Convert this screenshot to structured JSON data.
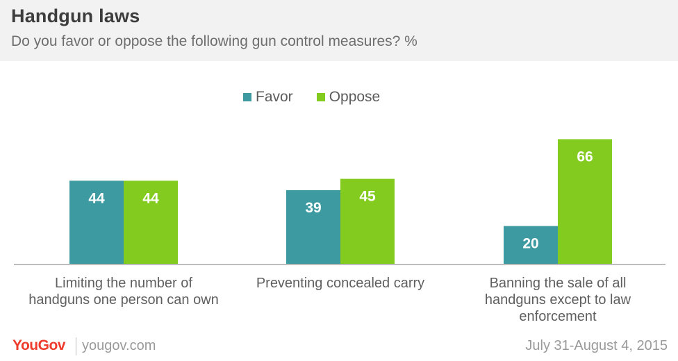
{
  "header": {
    "title": "Handgun laws",
    "subtitle": "Do you favor or oppose the following gun control measures? %"
  },
  "footer": {
    "logo": "YouGov",
    "site": "yougov.com",
    "date": "July 31-August 4, 2015"
  },
  "colors": {
    "favor": "#3d9aa0",
    "oppose": "#84cb1f",
    "axis": "#bdbdbd"
  },
  "chart_data": {
    "type": "bar",
    "title": "Handgun laws",
    "subtitle": "Do you favor or oppose the following gun control measures? %",
    "categories": [
      [
        "Limiting the number of",
        "handguns one person can own"
      ],
      [
        "Preventing concealed carry"
      ],
      [
        "Banning the sale of all",
        "handguns except to law",
        "enforcement"
      ]
    ],
    "series": [
      {
        "name": "Favor",
        "values": [
          44,
          39,
          20
        ]
      },
      {
        "name": "Oppose",
        "values": [
          44,
          45,
          66
        ]
      }
    ],
    "legend_position": "top",
    "data_labels": true,
    "grid": false
  }
}
